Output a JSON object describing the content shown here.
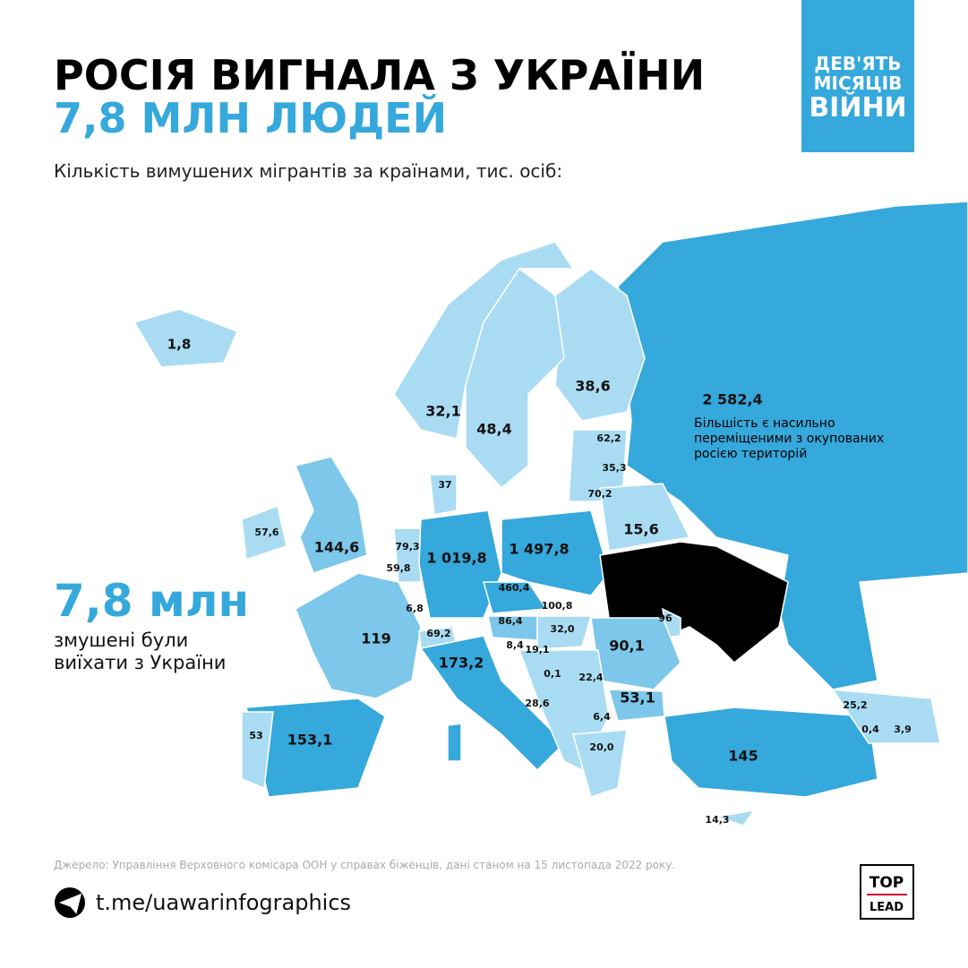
{
  "header": {
    "title_line1": "РОСІЯ ВИГНАЛА З УКРАЇНИ",
    "title_line2": "7,8 МЛН ЛЮДЕЙ",
    "subtitle": "Кількість вимушених мігрантів за країнами, тис. осіб:"
  },
  "badge": {
    "lines": [
      "ДЕВ'ЯТЬ",
      "МІСЯЦІВ",
      "ВІЙНИ"
    ]
  },
  "callout": {
    "value": "7,8 млн",
    "lines": [
      "змушені були",
      "виїхати з України"
    ]
  },
  "map": {
    "labels": [
      "1,8",
      "32,1",
      "48,4",
      "38,6",
      "2 582,4",
      "62,2",
      "35,3",
      "70,2",
      "15,6",
      "37",
      "57,6",
      "144,6",
      "79,3",
      "59,8",
      "1 019,8",
      "1 497,8",
      "460,4",
      "6,8",
      "119",
      "69,2",
      "86,4",
      "100,8",
      "32,0",
      "96",
      "90,1",
      "173,2",
      "8,4",
      "19,1",
      "0,1",
      "22,4",
      "28,6",
      "53,1",
      "6,4",
      "25,2",
      "0,4",
      "3,9",
      "53",
      "153,1",
      "20,0",
      "145",
      "14,3"
    ],
    "russia_note": [
      "Більшість є насильно",
      "переміщеними з окупованих",
      "росією територій"
    ]
  },
  "footer": {
    "source": "Джерело: Управління Верховного комісара ООН у справах біженців, дані станом на 15 листопада 2022 року.",
    "link": "t.me/uawarinfographics",
    "logo": [
      "TOP",
      "LEAD"
    ]
  }
}
